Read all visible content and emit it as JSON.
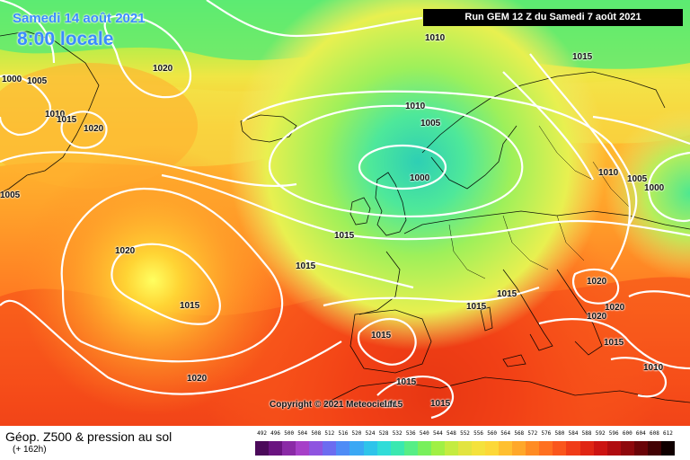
{
  "header": {
    "date": "Samedi 14 août 2021",
    "time": "8:00 locale",
    "run_info": "Run GEM 12 Z du Samedi 7 août 2021"
  },
  "map": {
    "isobar_labels": [
      "1010",
      "1015",
      "1020",
      "1000",
      "1005",
      "1010",
      "1015",
      "1020",
      "1010",
      "1005",
      "1000",
      "1010",
      "1005",
      "1000",
      "1005",
      "1015",
      "1020",
      "1015",
      "1015",
      "1015",
      "1015",
      "1020",
      "1020",
      "1020",
      "1015",
      "1015",
      "1015",
      "1010",
      "1020",
      "1015",
      "1015"
    ],
    "copyright": "Copyright © 2021 Meteociel.fr"
  },
  "legend": {
    "title": "Géop. Z500 & pression au sol",
    "subtitle": "(+ 162h)",
    "scale_values": [
      "492",
      "496",
      "500",
      "504",
      "508",
      "512",
      "516",
      "520",
      "524",
      "528",
      "532",
      "536",
      "540",
      "544",
      "548",
      "552",
      "556",
      "560",
      "564",
      "568",
      "572",
      "576",
      "580",
      "584",
      "588",
      "592",
      "596",
      "600",
      "604",
      "608",
      "612"
    ],
    "scale_colors": [
      "#4b0a5a",
      "#6a1480",
      "#8a2aa6",
      "#a640c8",
      "#8e54e0",
      "#6c6cf0",
      "#4e8cf6",
      "#3aa8f4",
      "#2ec4ea",
      "#30dcd8",
      "#3ae8b0",
      "#56ee86",
      "#78f05c",
      "#a0f044",
      "#c4ec40",
      "#e2e440",
      "#f4e23c",
      "#fcd838",
      "#ffc030",
      "#ffa82a",
      "#ff8c24",
      "#ff7020",
      "#fa561c",
      "#f03c18",
      "#e02614",
      "#cc1412",
      "#b00c10",
      "#8e080c",
      "#6a0408",
      "#420204",
      "#100000"
    ]
  }
}
